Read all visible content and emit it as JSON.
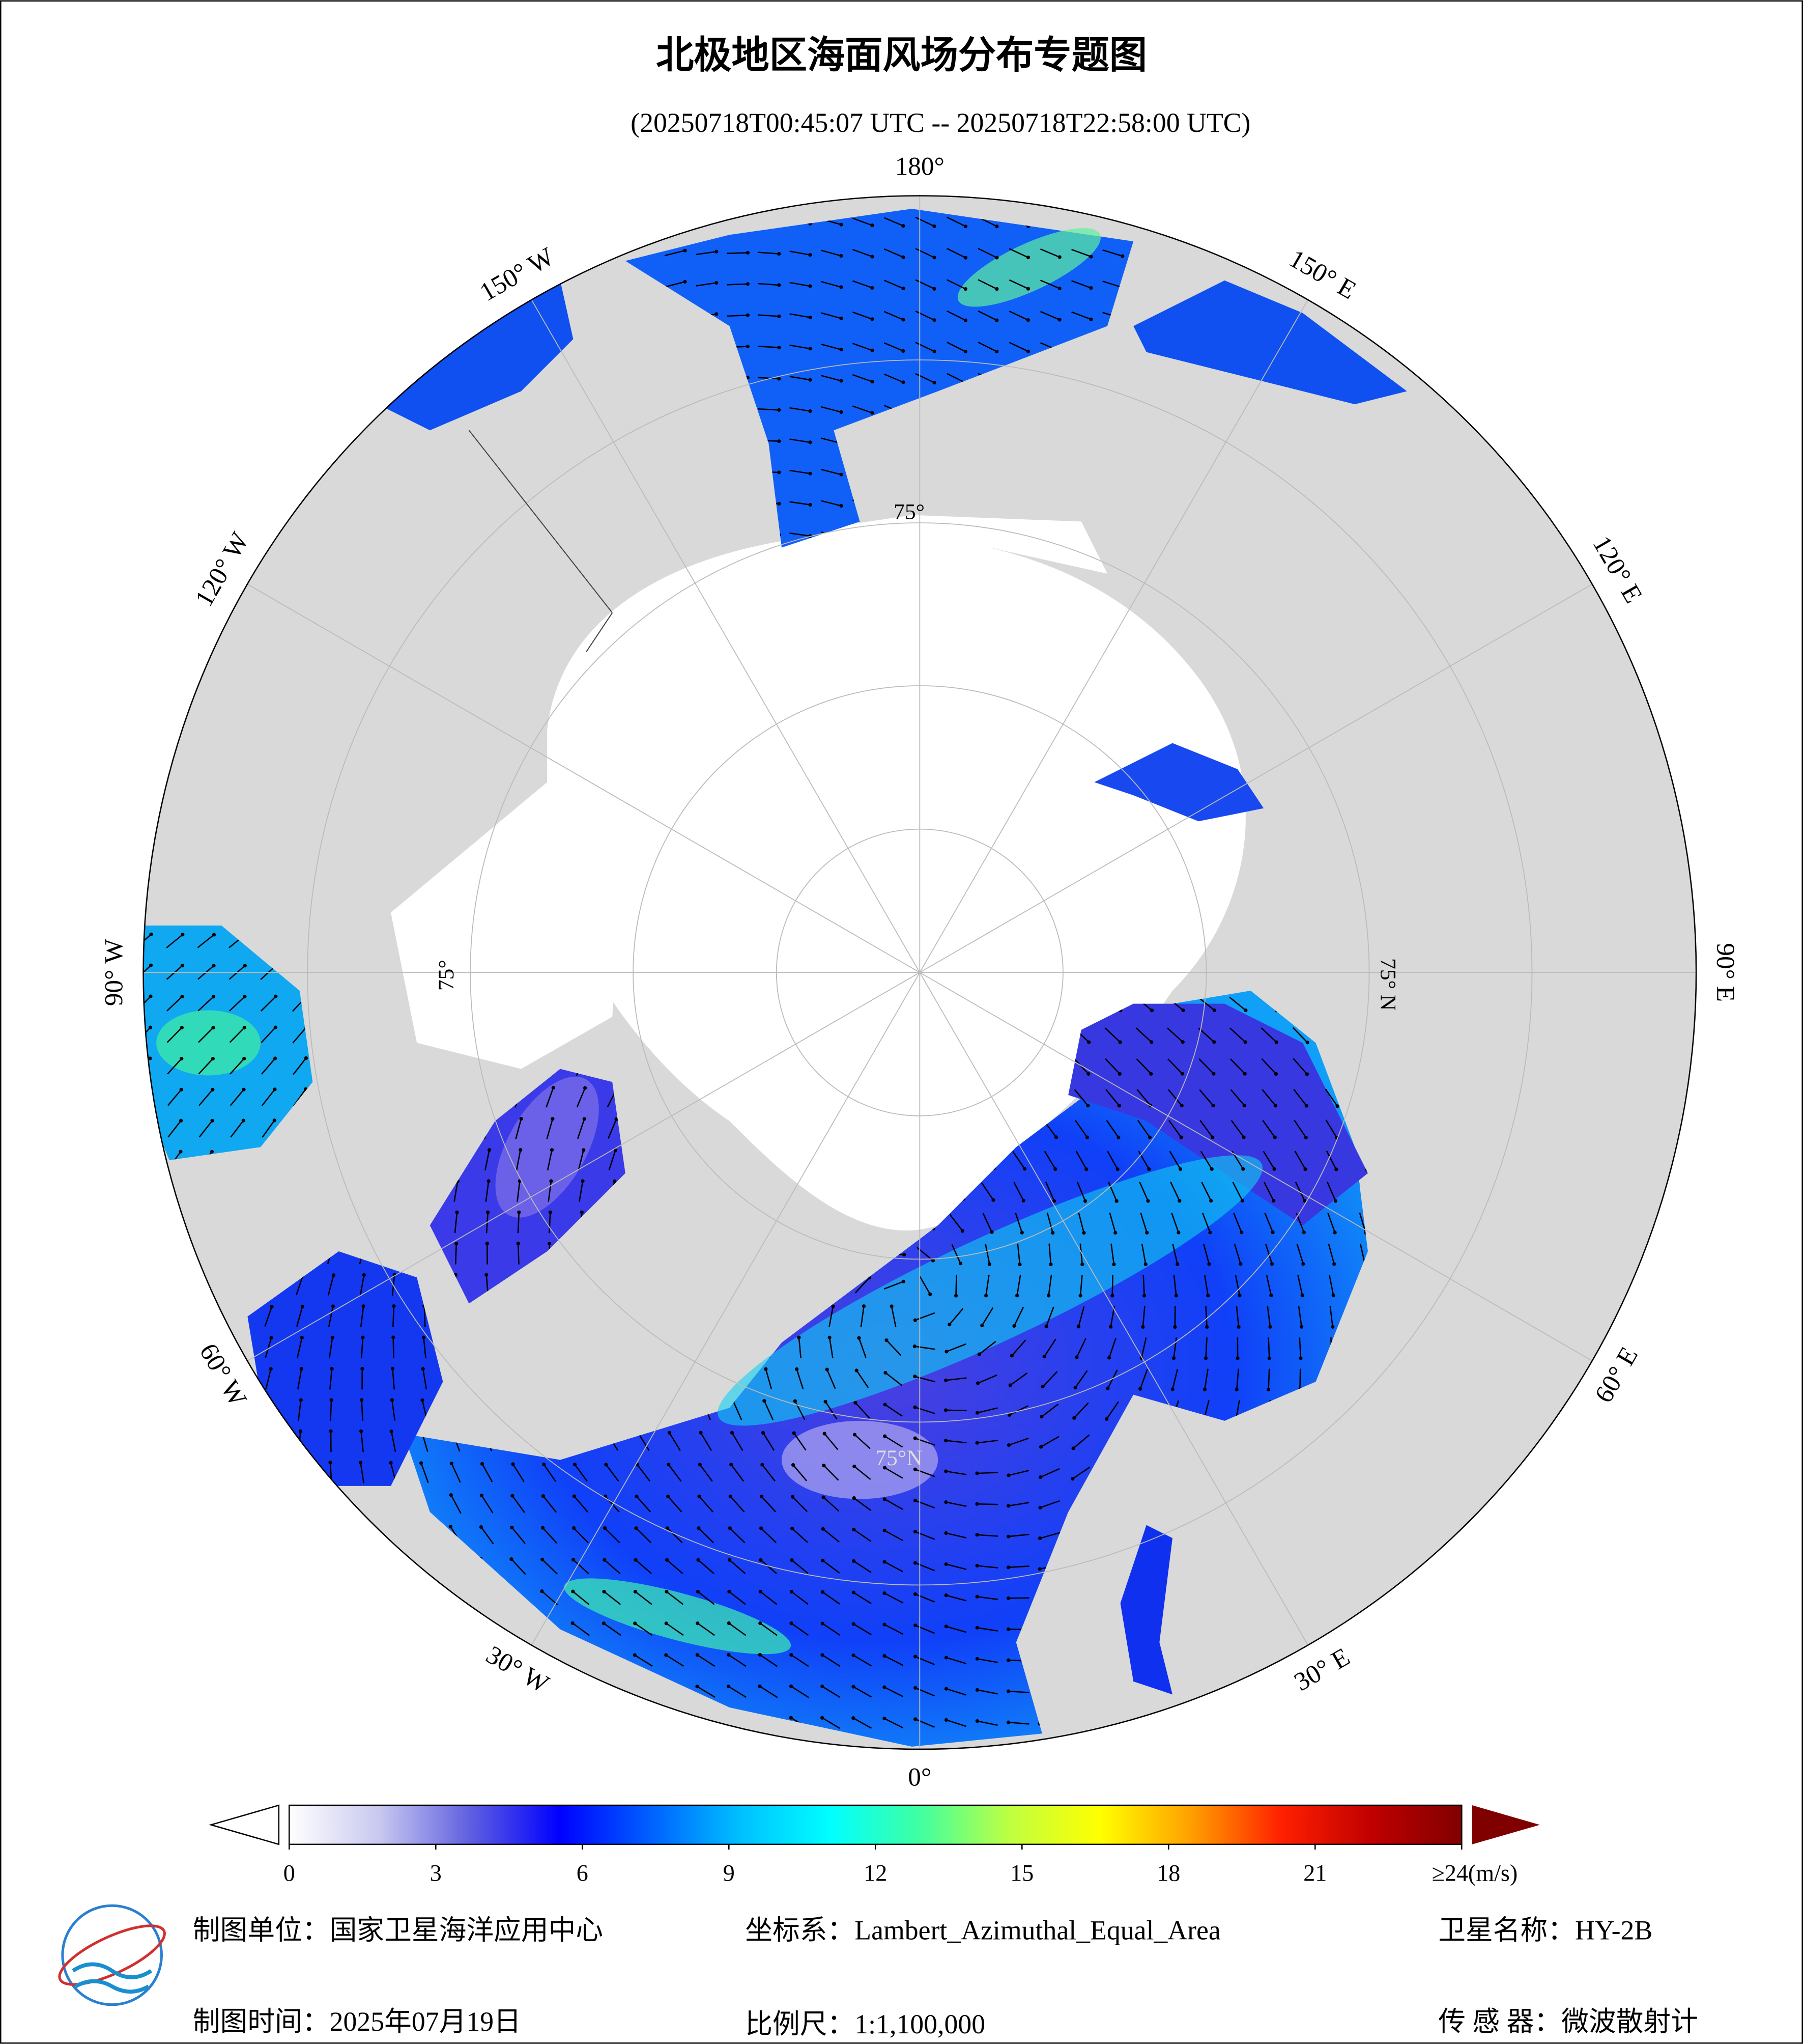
{
  "header": {
    "title": "北极地区海面风场分布专题图",
    "subtitle": "(20250718T00:45:07 UTC -- 20250718T22:58:00 UTC)"
  },
  "map": {
    "longitude_labels": [
      "0°",
      "30° E",
      "60° E",
      "90° E",
      "120° E",
      "150° E",
      "180°",
      "150° W",
      "120° W",
      "90° W",
      "60° W",
      "30° W"
    ],
    "latitude_labels": [
      "75°",
      "75°",
      "75° N",
      "75°N"
    ]
  },
  "colorbar": {
    "range": [
      0,
      24
    ],
    "ticks": [
      0,
      3,
      6,
      9,
      12,
      15,
      18,
      21,
      {
        "value": 24,
        "label": "≥24(m/s)"
      }
    ],
    "colors": [
      "#ffffff",
      "#c8c8f0",
      "#6060e0",
      "#0000ff",
      "#0060ff",
      "#00c0ff",
      "#00ffff",
      "#40ffa0",
      "#c0ff40",
      "#ffff00",
      "#ffa000",
      "#ff2000",
      "#c00000",
      "#800000"
    ]
  },
  "footer": {
    "unit": "制图单位：国家卫星海洋应用中心",
    "projection": "坐标系：Lambert_Azimuthal_Equal_Area",
    "satellite": "卫星名称：HY-2B",
    "date": "制图时间：2025年07月19日",
    "scale": "比例尺：1:1,100,000",
    "sensor": "传 感 器：微波散射计"
  }
}
